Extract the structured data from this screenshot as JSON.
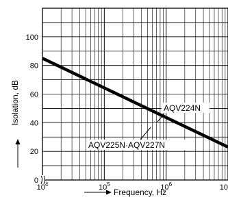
{
  "chart_data": {
    "type": "line",
    "xscale": "log",
    "xlim": [
      10000,
      10000000
    ],
    "ylim": [
      0,
      120
    ],
    "grid": true,
    "xlabel": "Frequency, Hz",
    "ylabel": "Isolation, dB",
    "x_ticks": [
      {
        "value": 10000,
        "mantissa": "10",
        "exp": "4"
      },
      {
        "value": 100000,
        "mantissa": "10",
        "exp": "5"
      },
      {
        "value": 1000000,
        "mantissa": "10",
        "exp": "6"
      },
      {
        "value": 10000000,
        "mantissa": "10",
        "exp": ""
      }
    ],
    "y_ticks": [
      {
        "value": 0,
        "label": "0"
      },
      {
        "value": 20,
        "label": "20"
      },
      {
        "value": 40,
        "label": "40"
      },
      {
        "value": 60,
        "label": "60"
      },
      {
        "value": 80,
        "label": "80"
      },
      {
        "value": 100,
        "label": "100"
      }
    ],
    "series": [
      {
        "x": [
          10000,
          10000000
        ],
        "y": [
          85,
          23
        ]
      }
    ],
    "annotations": [
      {
        "text": "AQV224N",
        "x": 1300000,
        "y": 41
      },
      {
        "text": "AQV225N·AQV227N",
        "x": 620000,
        "y": 45
      }
    ]
  }
}
